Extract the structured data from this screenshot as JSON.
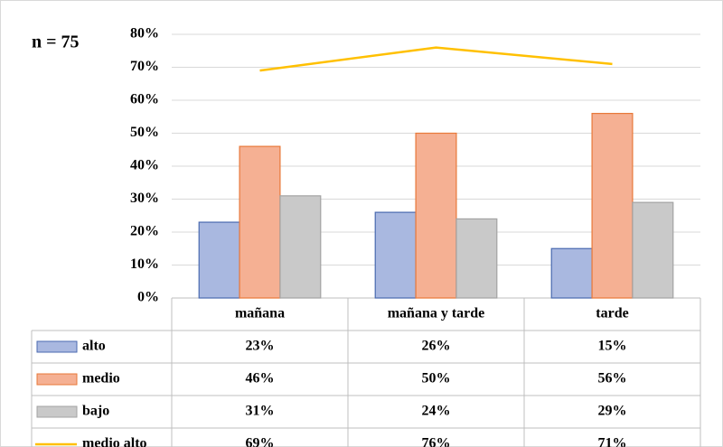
{
  "chart_data": {
    "type": "bar",
    "annotation": "n = 75",
    "categories": [
      "mañana",
      "mañana y tarde",
      "tarde"
    ],
    "series": [
      {
        "name": "alto",
        "color": "#a9b8e0",
        "stroke": "#4a6ab0",
        "values": [
          23,
          26,
          15
        ],
        "value_labels": [
          "23%",
          "26%",
          "15%"
        ]
      },
      {
        "name": "medio",
        "color": "#f5b093",
        "stroke": "#e8793a",
        "values": [
          46,
          50,
          56
        ],
        "value_labels": [
          "46%",
          "50%",
          "56%"
        ]
      },
      {
        "name": "bajo",
        "color": "#c9c9c9",
        "stroke": "#a3a3a3",
        "values": [
          31,
          24,
          29
        ],
        "value_labels": [
          "31%",
          "24%",
          "29%"
        ]
      },
      {
        "name": "medio alto",
        "type": "line",
        "color": "#ffc000",
        "values": [
          69,
          76,
          71
        ],
        "value_labels": [
          "69%",
          "76%",
          "71%"
        ]
      }
    ],
    "ylim": [
      0,
      80
    ],
    "yticks": [
      {
        "value": 0,
        "label": "0%"
      },
      {
        "value": 10,
        "label": "10%"
      },
      {
        "value": 20,
        "label": "20%"
      },
      {
        "value": 30,
        "label": "30%"
      },
      {
        "value": 40,
        "label": "40%"
      },
      {
        "value": 50,
        "label": "50%"
      },
      {
        "value": 60,
        "label": "60%"
      },
      {
        "value": 70,
        "label": "70%"
      },
      {
        "value": 80,
        "label": "80%"
      }
    ],
    "grid": true
  }
}
